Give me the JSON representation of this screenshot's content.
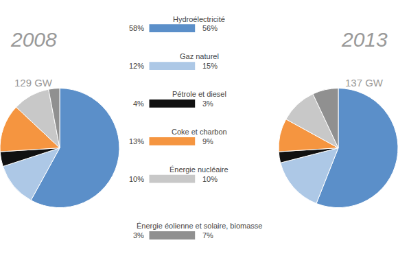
{
  "chart_data": [
    {
      "type": "pie",
      "title": "2008",
      "subtitle": "129 GW",
      "categories": [
        "Hydroélectricité",
        "Gaz naturel",
        "Pétrole et diesel",
        "Coke et charbon",
        "Énergie nucléaire",
        "Énergie éolienne et solaire, biomasse"
      ],
      "values": [
        58,
        12,
        4,
        13,
        10,
        3
      ],
      "value_labels": [
        "58%",
        "12%",
        "4%",
        "13%",
        "10%",
        "3%"
      ],
      "colors": [
        "#5b8fc9",
        "#adc8e6",
        "#111111",
        "#f59540",
        "#c8c8c8",
        "#909090"
      ]
    },
    {
      "type": "pie",
      "title": "2013",
      "subtitle": "137 GW",
      "categories": [
        "Hydroélectricité",
        "Gaz naturel",
        "Pétrole et diesel",
        "Coke et charbon",
        "Énergie nucléaire",
        "Énergie éolienne et solaire, biomasse"
      ],
      "values": [
        56,
        15,
        3,
        9,
        10,
        7
      ],
      "value_labels": [
        "56%",
        "15%",
        "3%",
        "9%",
        "10%",
        "7%"
      ],
      "colors": [
        "#5b8fc9",
        "#adc8e6",
        "#111111",
        "#f59540",
        "#c8c8c8",
        "#909090"
      ]
    }
  ]
}
